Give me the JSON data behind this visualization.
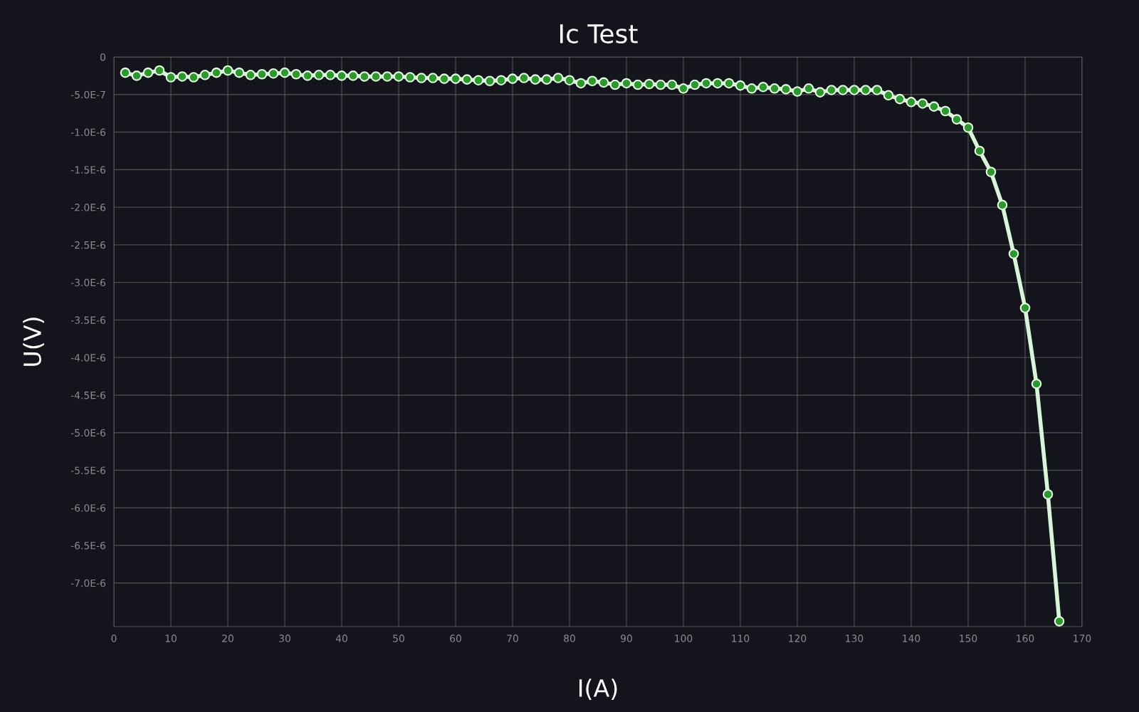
{
  "chart_data": {
    "type": "line",
    "title": "Ic Test",
    "xlabel": "I(A)",
    "ylabel": "U(V)",
    "x": [
      2,
      4,
      6,
      8,
      10,
      12,
      14,
      16,
      18,
      20,
      22,
      24,
      26,
      28,
      30,
      32,
      34,
      36,
      38,
      40,
      42,
      44,
      46,
      48,
      50,
      52,
      54,
      56,
      58,
      60,
      62,
      64,
      66,
      68,
      70,
      72,
      74,
      76,
      78,
      80,
      82,
      84,
      86,
      88,
      90,
      92,
      94,
      96,
      98,
      100,
      102,
      104,
      106,
      108,
      110,
      112,
      114,
      116,
      118,
      120,
      122,
      124,
      126,
      128,
      130,
      132,
      134,
      136,
      138,
      140,
      142,
      144,
      146,
      148,
      150,
      152,
      154,
      156,
      158,
      160,
      162,
      164,
      166
    ],
    "series": [
      {
        "color": "#2a9a2a",
        "values": [
          -2.1e-07,
          -2.5e-07,
          -2.1e-07,
          -1.8e-07,
          -2.7e-07,
          -2.6e-07,
          -2.7e-07,
          -2.4e-07,
          -2.1e-07,
          -1.8e-07,
          -2.1e-07,
          -2.4e-07,
          -2.3e-07,
          -2.2e-07,
          -2.1e-07,
          -2.3e-07,
          -2.5e-07,
          -2.4e-07,
          -2.4e-07,
          -2.5e-07,
          -2.5e-07,
          -2.6e-07,
          -2.6e-07,
          -2.6e-07,
          -2.6e-07,
          -2.7e-07,
          -2.8e-07,
          -2.8e-07,
          -2.9e-07,
          -2.9e-07,
          -3e-07,
          -3.1e-07,
          -3.2e-07,
          -3.1e-07,
          -2.9e-07,
          -2.8e-07,
          -3e-07,
          -3e-07,
          -2.8e-07,
          -3.1e-07,
          -3.5e-07,
          -3.2e-07,
          -3.4e-07,
          -3.7e-07,
          -3.5e-07,
          -3.7e-07,
          -3.6e-07,
          -3.7e-07,
          -3.7e-07,
          -4.2e-07,
          -3.7e-07,
          -3.5e-07,
          -3.5e-07,
          -3.5e-07,
          -3.8e-07,
          -4.2e-07,
          -4e-07,
          -4.2e-07,
          -4.3e-07,
          -4.6e-07,
          -4.2e-07,
          -4.7e-07,
          -4.4e-07,
          -4.4e-07,
          -4.4e-07,
          -4.4e-07,
          -4.4e-07,
          -5.1e-07,
          -5.6e-07,
          -6e-07,
          -6.2e-07,
          -6.6e-07,
          -7.2e-07,
          -8.3e-07,
          -9.4e-07,
          -1.25e-06,
          -1.53e-06,
          -1.97e-06,
          -2.62e-06,
          -3.34e-06,
          -4.35e-06,
          -5.82e-06,
          -7.51e-06
        ]
      }
    ],
    "xlim": [
      0,
      170
    ],
    "xticks": [
      0,
      10,
      20,
      30,
      40,
      50,
      60,
      70,
      80,
      90,
      100,
      110,
      120,
      130,
      140,
      150,
      160,
      170
    ],
    "ylim": [
      -7.58e-06,
      0
    ],
    "yticks": [
      {
        "value": 0,
        "label": "0"
      },
      {
        "value": -5e-07,
        "label": "-5.0E-7"
      },
      {
        "value": -1e-06,
        "label": "-1.0E-6"
      },
      {
        "value": -1.5e-06,
        "label": "-1.5E-6"
      },
      {
        "value": -2e-06,
        "label": "-2.0E-6"
      },
      {
        "value": -2.5e-06,
        "label": "-2.5E-6"
      },
      {
        "value": -3e-06,
        "label": "-3.0E-6"
      },
      {
        "value": -3.5e-06,
        "label": "-3.5E-6"
      },
      {
        "value": -4e-06,
        "label": "-4.0E-6"
      },
      {
        "value": -4.5e-06,
        "label": "-4.5E-6"
      },
      {
        "value": -5e-06,
        "label": "-5.0E-6"
      },
      {
        "value": -5.5e-06,
        "label": "-5.5E-6"
      },
      {
        "value": -6e-06,
        "label": "-6.0E-6"
      },
      {
        "value": -6.5e-06,
        "label": "-6.5E-6"
      },
      {
        "value": -7e-06,
        "label": "-7.0E-6"
      }
    ],
    "grid": true,
    "marker": "circle",
    "line_style": "solid",
    "legend": false
  }
}
